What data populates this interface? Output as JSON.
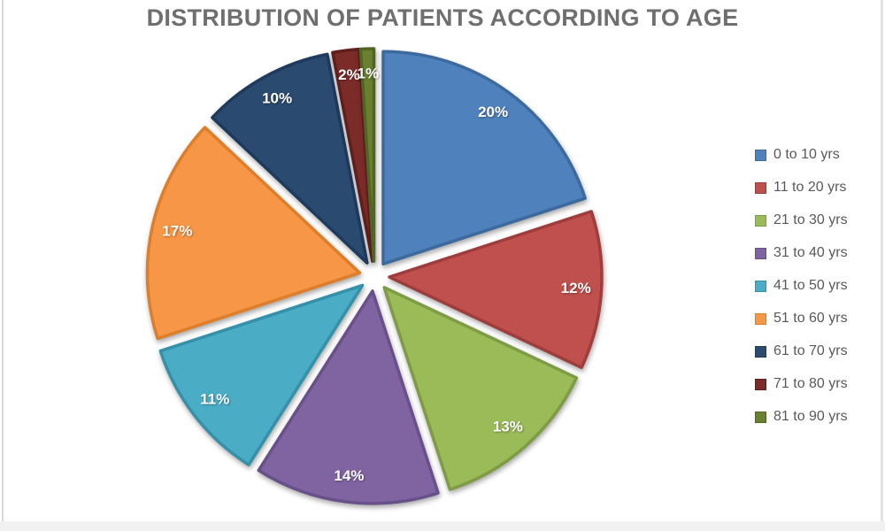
{
  "chart_data": {
    "type": "pie",
    "title": "DISTRIBUTION OF PATIENTS ACCORDING TO AGE",
    "categories": [
      "0 to 10 yrs",
      "11 to 20 yrs",
      "21 to 30 yrs",
      "31 to 40 yrs",
      "41 to 50 yrs",
      "51 to 60 yrs",
      "61 to 70 yrs",
      "71 to 80 yrs",
      "81 to 90 yrs"
    ],
    "values": [
      20,
      12,
      13,
      14,
      11,
      17,
      10,
      2,
      1
    ],
    "labels": [
      "20%",
      "12%",
      "13%",
      "14%",
      "11%",
      "17%",
      "10%",
      "2%",
      "1%"
    ],
    "unit": "%",
    "colors": [
      "#4F81BD",
      "#C0504D",
      "#9BBB59",
      "#8064A2",
      "#4BACC6",
      "#F79646",
      "#2A4A70",
      "#7B2B28",
      "#68802F"
    ],
    "edge_colors": [
      "#3C6A9E",
      "#9E3D3B",
      "#7E9C43",
      "#68518A",
      "#3590AA",
      "#DD7E2B",
      "#1E3A5C",
      "#601F1D",
      "#506523"
    ],
    "legend_position": "right",
    "start_angle_deg": 0,
    "direction": "clockwise",
    "exploded": true,
    "title_color": "#6F6F6F",
    "legend_text_color": "#595959",
    "label_text_color": "#FFFFFF"
  }
}
